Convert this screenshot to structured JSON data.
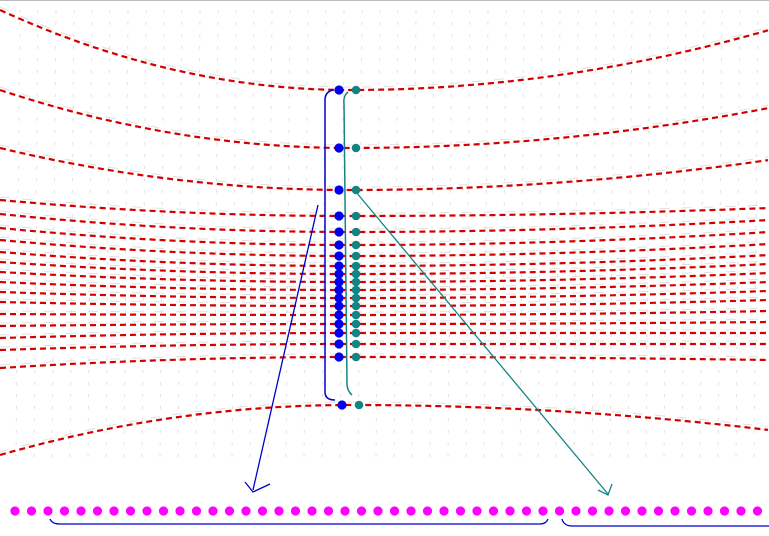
{
  "colors": {
    "background": "#ffffff",
    "top_border": "#bdbdbd",
    "ghost_grid": "#e0e0e0",
    "grid_lines": "#d40000",
    "left_nodes": "#0000ee",
    "right_nodes": "#138484",
    "bottom_nodes": "#ff00ff",
    "left_bracket": "#0000cc",
    "right_bracket": "#138484",
    "left_arrow": "#0000cc",
    "right_arrow": "#138484"
  },
  "figure": {
    "description_elements": [
      "red-dashed-curved-grid",
      "blue-node-column",
      "teal-node-column",
      "magenta-node-row",
      "brackets",
      "mapping-arrows"
    ]
  }
}
